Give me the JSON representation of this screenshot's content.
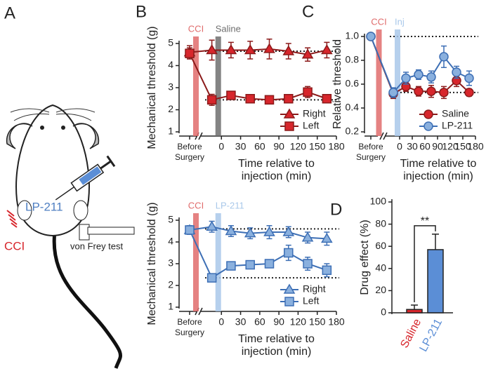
{
  "panel_labels": [
    "A",
    "B",
    "C",
    "D"
  ],
  "illustration": {
    "injection": "LP-211",
    "lesion": "CCI",
    "test": "von Frey test"
  },
  "chart_data": [
    {
      "type": "line",
      "ylabel": "Mechanical threshold (g)",
      "xlabel": [
        "Time relative to",
        "injection (min)"
      ],
      "before_label": [
        "Before",
        "Surgery"
      ],
      "bands": [
        {
          "label": "CCI",
          "color": "#e06c6c"
        },
        {
          "label": "Saline",
          "color": "#6e6e6e"
        }
      ],
      "x": [
        -15,
        15,
        45,
        75,
        105,
        135,
        165
      ],
      "xlim": [
        -30,
        180
      ],
      "xticks": [
        0,
        30,
        60,
        90,
        120,
        150,
        180
      ],
      "ylim": [
        1,
        5
      ],
      "yticks": [
        1,
        2,
        3,
        4,
        5
      ],
      "ref_lines": [
        4.65,
        2.45
      ],
      "legend": "lower right",
      "series": [
        {
          "name": "Right",
          "marker": "triangle",
          "color": "#d7262c",
          "edge_color": "#8b1a1a",
          "before": 4.6,
          "before_error": 0.3,
          "values": [
            4.7,
            4.7,
            4.7,
            4.75,
            4.65,
            4.5,
            4.7
          ],
          "errors": [
            0.45,
            0.35,
            0.4,
            0.45,
            0.35,
            0.3,
            0.35
          ]
        },
        {
          "name": "Left",
          "marker": "square",
          "color": "#d7262c",
          "edge_color": "#8b1a1a",
          "before": 4.55,
          "before_error": 0.25,
          "values": [
            2.45,
            2.65,
            2.5,
            2.45,
            2.5,
            2.8,
            2.5
          ],
          "errors": [
            0.25,
            0.1,
            0.1,
            0.1,
            0.15,
            0.25,
            0.15
          ]
        }
      ]
    },
    {
      "type": "line",
      "ylabel": "Mechanical threshold (g)",
      "xlabel": [
        "Time relative to",
        "injection (min)"
      ],
      "before_label": [
        "Before",
        "Surgery"
      ],
      "bands": [
        {
          "label": "CCI",
          "color": "#e06c6c"
        },
        {
          "label": "LP-211",
          "color": "#a9c8ea"
        }
      ],
      "x": [
        -15,
        15,
        45,
        75,
        105,
        135,
        165
      ],
      "xlim": [
        -30,
        180
      ],
      "xticks": [
        0,
        30,
        60,
        90,
        120,
        150,
        180
      ],
      "ylim": [
        1,
        5
      ],
      "yticks": [
        1,
        2,
        3,
        4,
        5
      ],
      "ref_lines": [
        4.6,
        2.35
      ],
      "legend": "lower right",
      "series": [
        {
          "name": "Right",
          "marker": "triangle",
          "color": "#8ab0de",
          "edge_color": "#3d6fb5",
          "before": 4.55,
          "before_error": 0.2,
          "values": [
            4.7,
            4.5,
            4.4,
            4.45,
            4.45,
            4.2,
            4.15
          ],
          "errors": [
            0.25,
            0.25,
            0.25,
            0.3,
            0.25,
            0.25,
            0.3
          ]
        },
        {
          "name": "Left",
          "marker": "square",
          "color": "#8ab0de",
          "edge_color": "#3d6fb5",
          "before": 4.55,
          "before_error": 0.2,
          "values": [
            2.35,
            2.9,
            2.95,
            3.0,
            3.5,
            3.0,
            2.7
          ],
          "errors": [
            0.1,
            0.1,
            0.15,
            0.1,
            0.35,
            0.3,
            0.3
          ]
        }
      ]
    },
    {
      "type": "line",
      "ylabel": "Relative threshold",
      "xlabel": [
        "Time relative to",
        "injection (min)"
      ],
      "before_label": [
        "Before",
        "Surgery"
      ],
      "bands": [
        {
          "label": "CCI",
          "color": "#e06c6c"
        },
        {
          "label": "Inj",
          "color": "#a9c8ea"
        }
      ],
      "x": [
        -15,
        15,
        45,
        75,
        105,
        135,
        165
      ],
      "xlim": [
        -30,
        180
      ],
      "xticks": [
        0,
        30,
        60,
        90,
        120,
        150,
        180
      ],
      "ylim": [
        0.2,
        1.0
      ],
      "yticks": [
        0.2,
        0.4,
        0.6,
        0.8,
        {
          "value": 1,
          "label": "1.0"
        }
      ],
      "ref_lines": [
        1.0,
        0.53
      ],
      "legend": "lower right",
      "series": [
        {
          "name": "Saline",
          "marker": "circle",
          "color": "#d7262c",
          "edge_color": "#8b1a1a",
          "before": 1.0,
          "before_error": 0.02,
          "values": [
            0.52,
            0.58,
            0.54,
            0.54,
            0.53,
            0.63,
            0.53
          ],
          "errors": [
            0.04,
            0.04,
            0.04,
            0.05,
            0.05,
            0.05,
            0.03
          ]
        },
        {
          "name": "LP-211",
          "marker": "circle",
          "color": "#8ab0de",
          "edge_color": "#3d6fb5",
          "before": 1.0,
          "before_error": 0.02,
          "values": [
            0.53,
            0.65,
            0.68,
            0.66,
            0.83,
            0.7,
            0.65
          ],
          "errors": [
            0.04,
            0.05,
            0.04,
            0.05,
            0.09,
            0.05,
            0.06
          ]
        }
      ]
    },
    {
      "type": "bar",
      "ylabel": "Drug effect (%)",
      "categories": [
        "Saline",
        "LP-211"
      ],
      "values": [
        3,
        57
      ],
      "errors": [
        4,
        14
      ],
      "colors": [
        "#d7262c",
        "#5b8ed6"
      ],
      "ylim": [
        0,
        100
      ],
      "yticks": [
        0,
        20,
        40,
        60,
        80,
        100
      ],
      "annotation": "**"
    }
  ]
}
